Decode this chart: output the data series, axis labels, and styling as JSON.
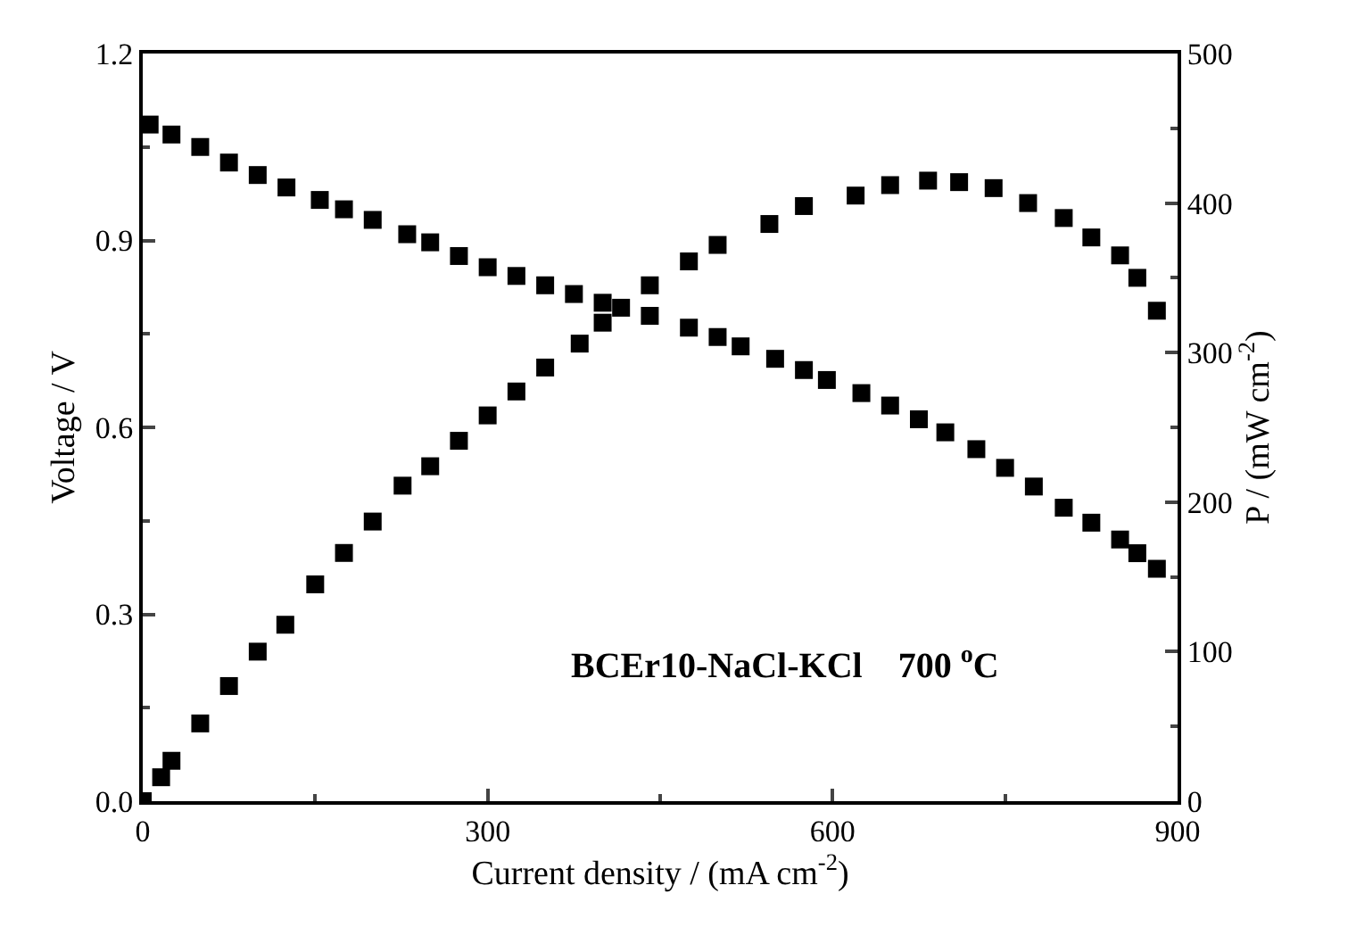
{
  "chart_data": {
    "type": "scatter",
    "xlabel": "Current density / (mA cm$^{-2}$)",
    "ylabel": "Voltage / V",
    "y2label": "P / (mW cm$^{-2}$)",
    "xlim": [
      0,
      900
    ],
    "xticks": [
      0,
      300,
      600,
      900
    ],
    "ylim": [
      0,
      1.2
    ],
    "yticks": [
      {
        "value": 0,
        "label": "0.0"
      },
      0.3,
      0.6,
      0.9,
      1.2
    ],
    "y2lim": [
      0,
      500
    ],
    "y2ticks": [
      0,
      100,
      200,
      300,
      400,
      500
    ],
    "marker": "square",
    "annotations": [
      "BCEr10-NaCl-KCl    700 $^{o}$C"
    ],
    "series": [
      {
        "color": "#000000",
        "x": [
          6,
          25,
          50,
          75,
          100,
          125,
          154,
          175,
          200,
          230,
          250,
          275,
          300,
          325,
          350,
          375,
          400,
          416,
          441,
          475,
          500,
          520,
          550,
          575,
          595,
          625,
          650,
          675,
          698,
          725,
          750,
          775,
          801,
          825,
          850,
          865,
          882
        ],
        "values": [
          1.086,
          1.07,
          1.05,
          1.025,
          1.005,
          0.985,
          0.965,
          0.95,
          0.933,
          0.91,
          0.897,
          0.875,
          0.857,
          0.843,
          0.828,
          0.814,
          0.8,
          0.792,
          0.779,
          0.76,
          0.745,
          0.73,
          0.71,
          0.692,
          0.676,
          0.655,
          0.635,
          0.613,
          0.592,
          0.565,
          0.535,
          0.505,
          0.471,
          0.447,
          0.42,
          0.398,
          0.373
        ]
      },
      {
        "color": "#000000",
        "axis": "y2",
        "x": [
          0,
          16,
          25,
          50,
          75,
          100,
          124,
          150,
          175,
          200,
          226,
          250,
          275,
          300,
          325,
          350,
          380,
          400,
          441,
          475,
          500,
          545,
          575,
          620,
          650,
          683,
          710,
          740,
          770,
          801,
          825,
          850,
          865,
          882
        ],
        "values": [
          0,
          16,
          27,
          52,
          77,
          100,
          118,
          145,
          166,
          187,
          211,
          224,
          241,
          258,
          274,
          290,
          306,
          320,
          345,
          361,
          372,
          386,
          398,
          405,
          412,
          415,
          414,
          410,
          400,
          390,
          377,
          365,
          350,
          328
        ]
      }
    ]
  }
}
